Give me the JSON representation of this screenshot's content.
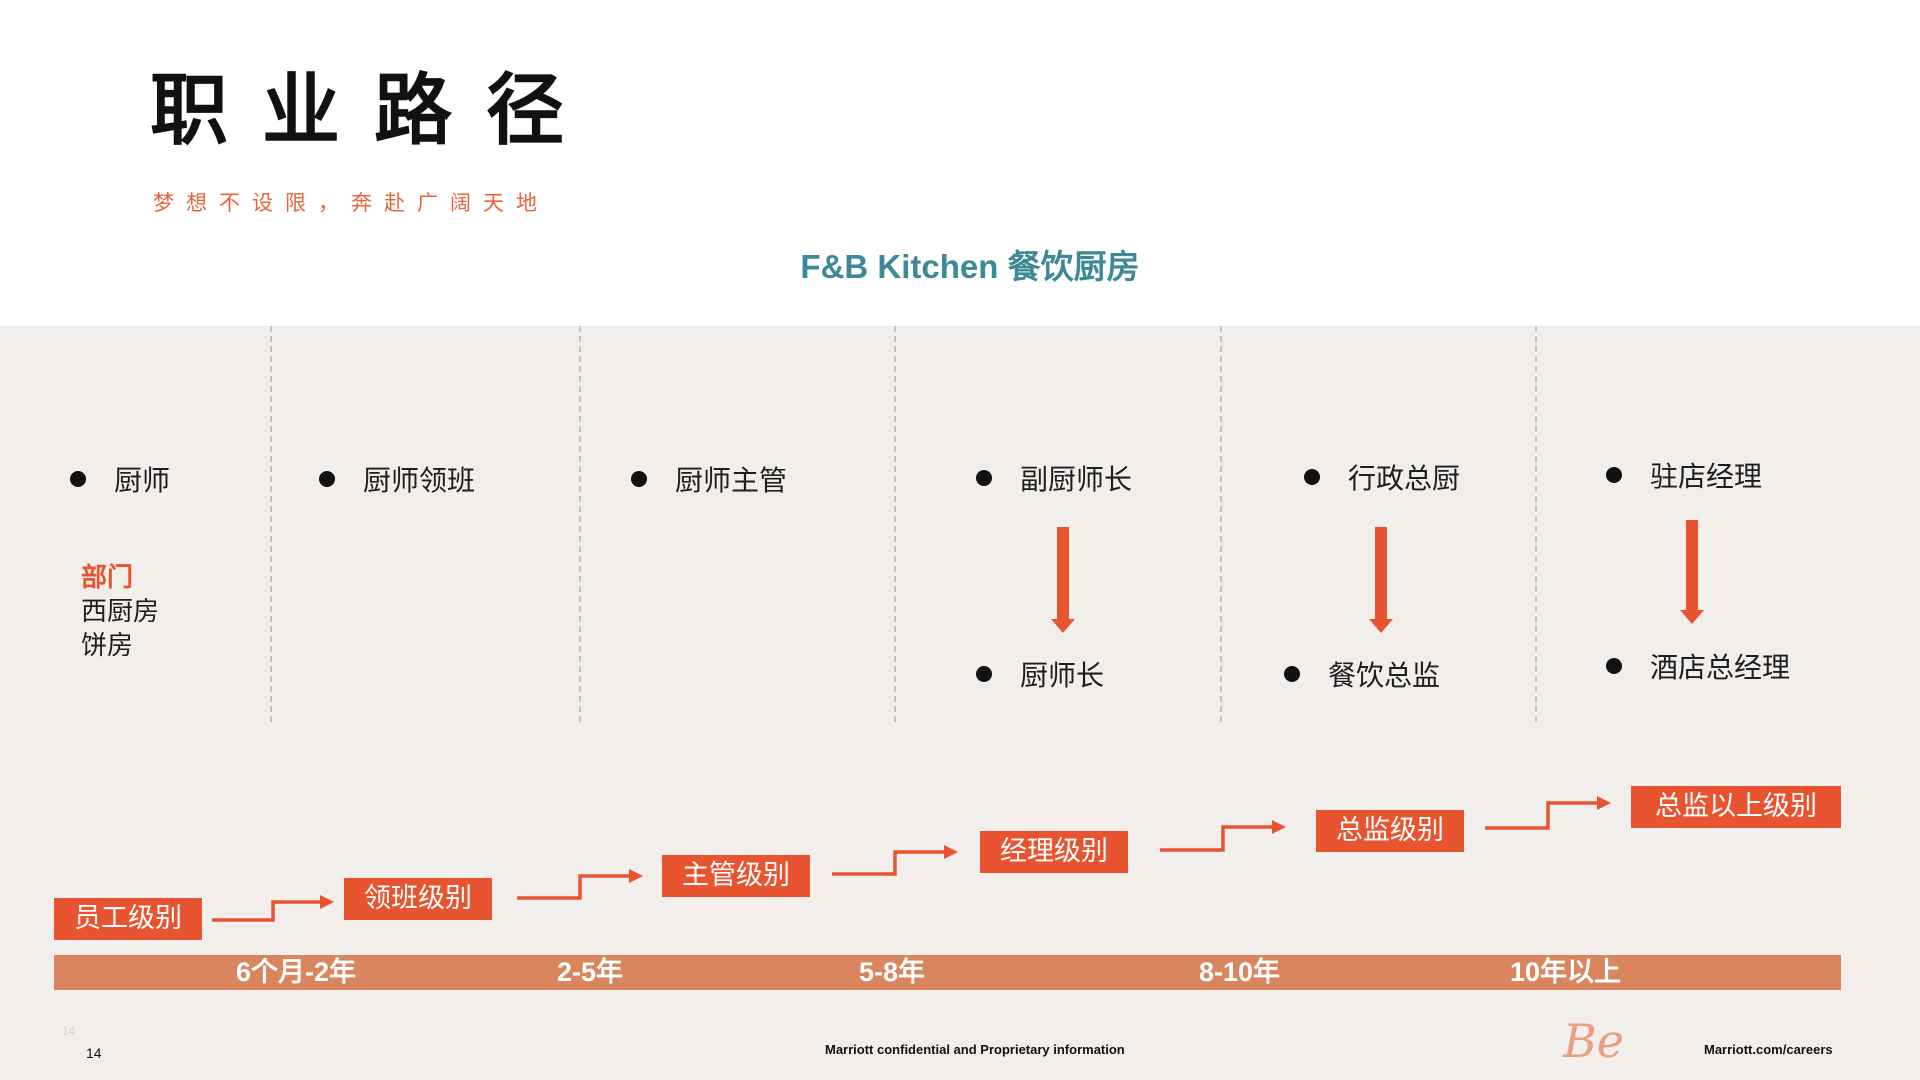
{
  "header": {
    "title": "职业路径",
    "subtitle": "梦想不设限，奔赴广阔天地"
  },
  "section_title": "F&B Kitchen 餐饮厨房",
  "columns": [
    {
      "roles": [
        "厨师"
      ]
    },
    {
      "roles": [
        "厨师领班"
      ]
    },
    {
      "roles": [
        "厨师主管"
      ]
    },
    {
      "roles": [
        "副厨师长",
        "厨师长"
      ]
    },
    {
      "roles": [
        "行政总厨",
        "餐饮总监"
      ]
    },
    {
      "roles": [
        "驻店经理",
        "酒店总经理"
      ]
    }
  ],
  "department": {
    "label": "部门",
    "items": [
      "西厨房",
      "饼房"
    ]
  },
  "levels": [
    "员工级别",
    "领班级别",
    "主管级别",
    "经理级别",
    "总监级别",
    "总监以上级别"
  ],
  "years": [
    "6个月-2年",
    "2-5年",
    "5-8年",
    "8-10年",
    "10年以上"
  ],
  "footer": {
    "page_number": "14",
    "page_number_ghost": "14",
    "confidential": "Marriott confidential and Proprietary information",
    "logo_text": "Be",
    "website": "Marriott.com/careers"
  },
  "colors": {
    "accent": "#e8542f",
    "teal": "#3d8a96",
    "panel": "#f2eeeb",
    "band": "#d9865f"
  }
}
